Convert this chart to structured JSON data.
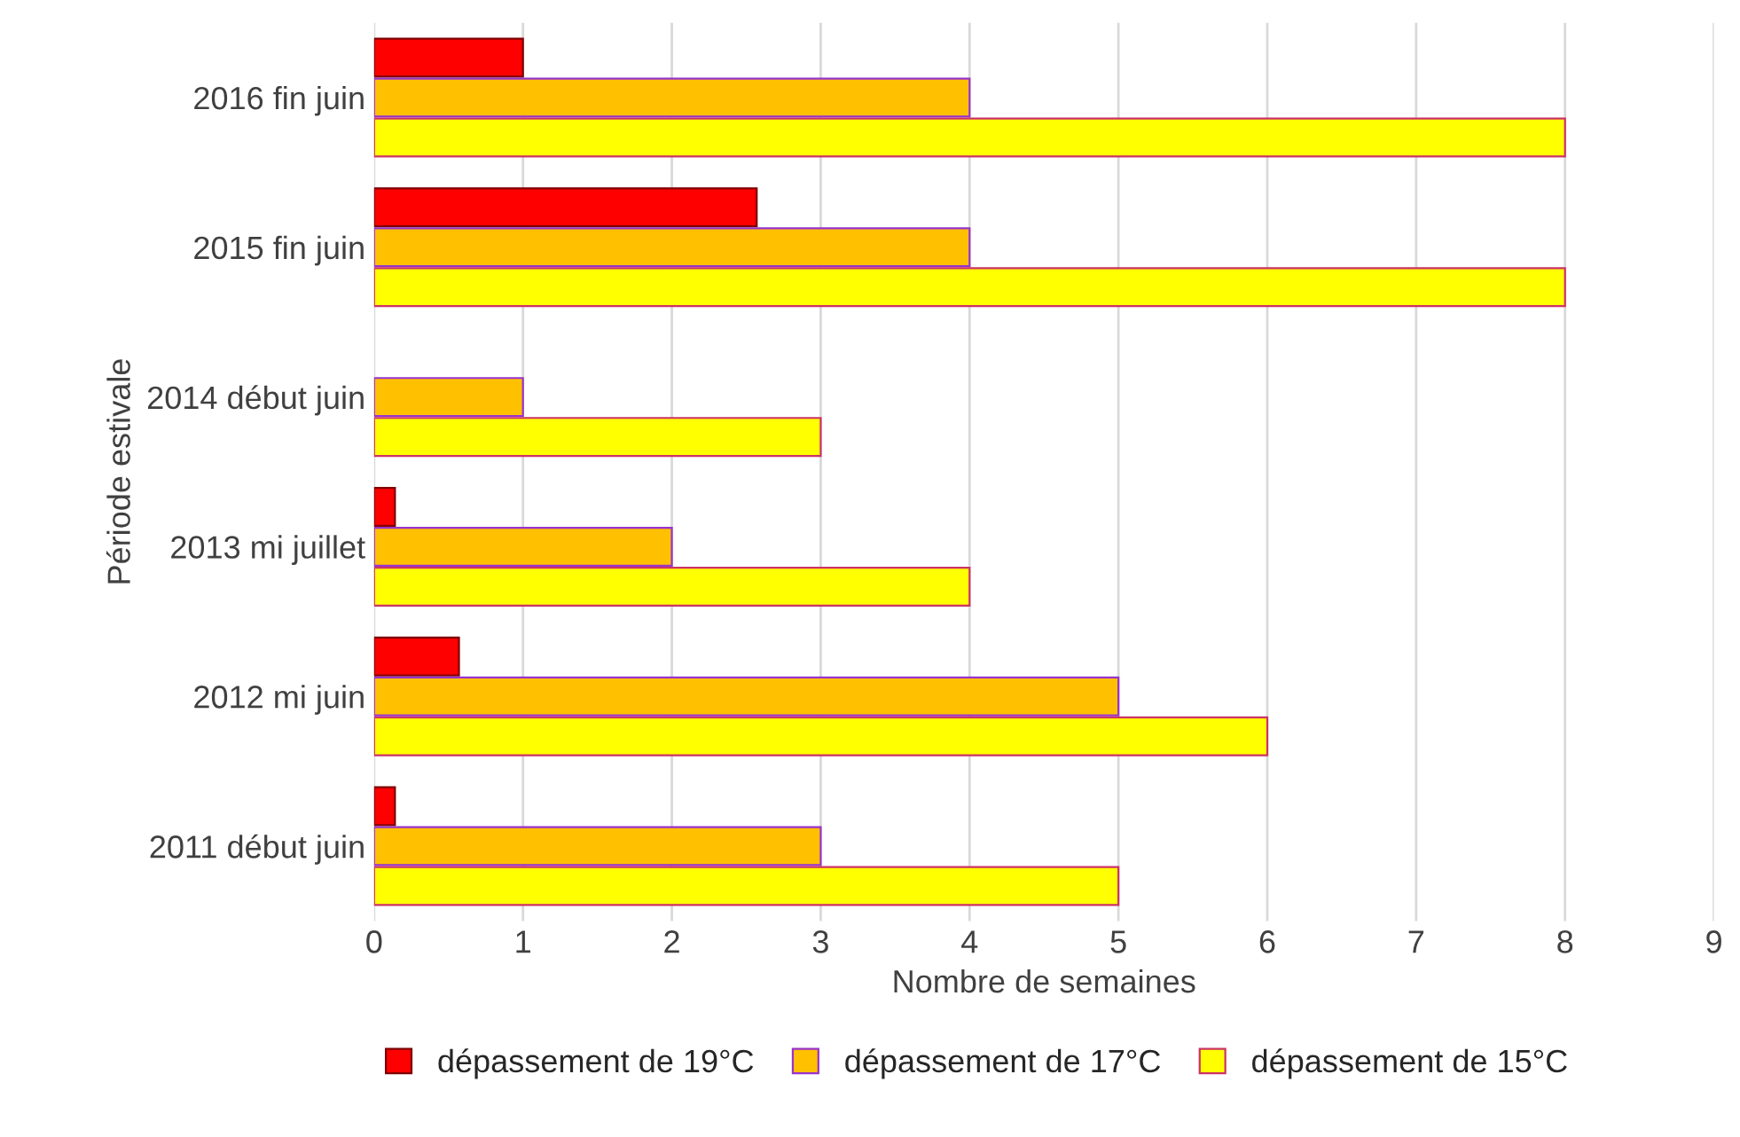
{
  "chart_data": {
    "type": "bar",
    "orientation": "horizontal",
    "xlabel": "Nombre de semaines",
    "ylabel": "Période estivale",
    "categories": [
      "2016 fin juin",
      "2015 fin juin",
      "2014 début juin",
      "2013 mi juillet",
      "2012 mi juin",
      "2011 début juin"
    ],
    "series": [
      {
        "name": "dépassement de 19°C",
        "color": "#ff0000",
        "values": [
          1,
          2.57,
          null,
          0.14,
          0.57,
          0.14
        ]
      },
      {
        "name": "dépassement de 17°C",
        "color": "#ffc000",
        "values": [
          4,
          4,
          1,
          2,
          5,
          3
        ]
      },
      {
        "name": "dépassement de 15°C",
        "color": "#ffff00",
        "values": [
          8,
          8,
          3,
          4,
          6,
          5
        ]
      }
    ],
    "xlim": [
      0,
      9
    ],
    "xticks": [
      0,
      1,
      2,
      3,
      4,
      5,
      6,
      7,
      8,
      9
    ],
    "grid": "x",
    "legend": "bottom"
  }
}
